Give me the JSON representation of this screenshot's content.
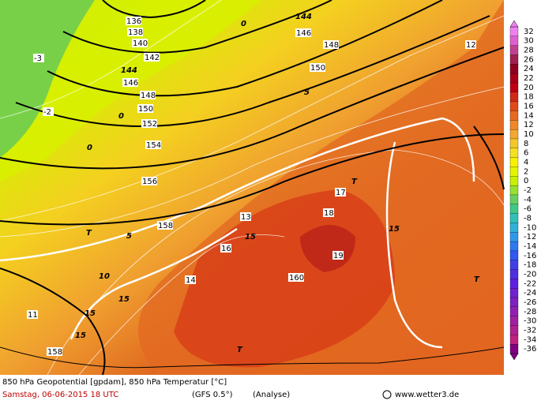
{
  "map": {
    "title": "850 hPa Geopotential [gpdam], 850 hPa Temperatur [°C]",
    "date": "Samstag, 06-06-2015  18 UTC",
    "model": "(GFS 0.5°)",
    "run": "(Analyse)",
    "credit": "www.wetter3.de",
    "colorbar": {
      "labels": [
        32,
        30,
        28,
        26,
        24,
        22,
        20,
        18,
        16,
        14,
        12,
        10,
        8,
        6,
        4,
        2,
        0,
        -2,
        -4,
        -6,
        -8,
        -10,
        -12,
        -14,
        -16,
        -18,
        -20,
        -22,
        -24,
        -26,
        -28,
        -30,
        -32,
        -34,
        -36
      ],
      "colors": [
        "#f080f0",
        "#e060d0",
        "#c04090",
        "#a02050",
        "#900020",
        "#a80018",
        "#c00010",
        "#d02818",
        "#e04818",
        "#e86820",
        "#f08828",
        "#f4a830",
        "#f4c828",
        "#f4e020",
        "#f8f000",
        "#e4f400",
        "#c8f000",
        "#98e030",
        "#68d060",
        "#40c888",
        "#30c0b8",
        "#30b0d8",
        "#3098e8",
        "#3078f0",
        "#3058f0",
        "#4040e8",
        "#5030e0",
        "#6020e0",
        "#7020d0",
        "#8020c0",
        "#9020b0",
        "#a020a0",
        "#b02090",
        "#c02080",
        "#800080"
      ]
    },
    "contour_labels": [
      "136",
      "138",
      "140",
      "142",
      "144",
      "146",
      "148",
      "150",
      "152",
      "154",
      "156",
      "158",
      "158",
      "160",
      "144",
      "146",
      "148",
      "150",
      "0",
      "0",
      "0",
      "-2",
      "-3",
      "5",
      "5",
      "10",
      "15",
      "15",
      "15",
      "15",
      "15",
      "17",
      "18",
      "19",
      "16",
      "14",
      "13",
      "12",
      "11",
      "T",
      "T",
      "T",
      "T"
    ]
  }
}
